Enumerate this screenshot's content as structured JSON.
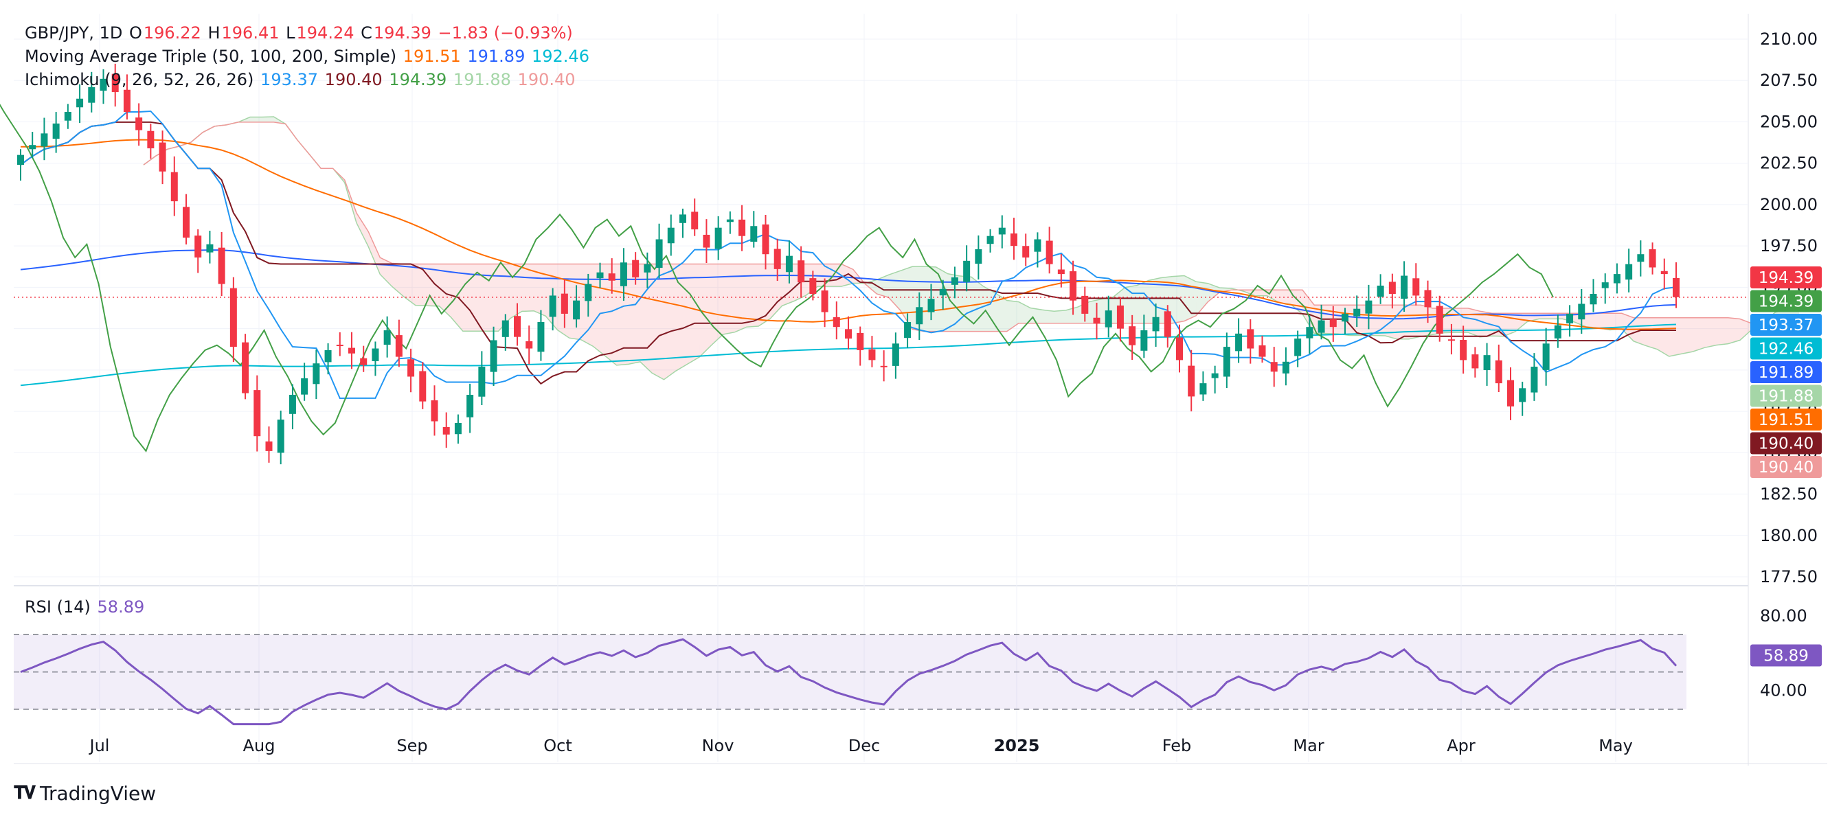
{
  "header": {
    "symbol": "GBP/JPY, 1D",
    "open_label": "O",
    "open": "196.22",
    "high_label": "H",
    "high": "196.41",
    "low_label": "L",
    "low": "194.24",
    "close_label": "C",
    "close": "194.39",
    "change": "−1.83 (−0.93%)"
  },
  "indicators": {
    "ma": {
      "label": "Moving Average Triple (50, 100, 200, Simple)",
      "v50": "191.51",
      "v100": "191.89",
      "v200": "192.46"
    },
    "ichimoku": {
      "label": "Ichimoku (9, 26, 52, 26, 26)",
      "conv": "193.37",
      "base": "190.40",
      "lag": "194.39",
      "spanA": "191.88",
      "spanB": "190.40"
    },
    "rsi": {
      "label": "RSI (14)",
      "value": "58.89"
    }
  },
  "colors": {
    "up": "#089981",
    "down": "#f23645",
    "ma50": "#ff6d00",
    "ma100": "#2962ff",
    "ma200": "#00bcd4",
    "conversion": "#2196f3",
    "base": "#801922",
    "lagging": "#43a047",
    "spanA": "#a5d6a7",
    "spanB": "#ef9a9a",
    "rsi": "#7e57c2"
  },
  "brand": {
    "name": "TradingView"
  },
  "chart_data": {
    "type": "candlestick",
    "price_axis": {
      "ylim": [
        177.5,
        210.0
      ],
      "ticks": [
        "210.00",
        "207.50",
        "205.00",
        "202.50",
        "200.00",
        "197.50",
        "195.00",
        "192.50",
        "190.00",
        "187.50",
        "185.00",
        "182.50",
        "180.00",
        "177.50"
      ]
    },
    "rsi_axis": {
      "ylim": [
        20,
        90
      ],
      "ticks": [
        "80.00",
        "40.00"
      ],
      "bands": [
        30,
        50,
        70
      ]
    },
    "time_axis": [
      "Jul",
      "Aug",
      "Sep",
      "Oct",
      "Nov",
      "Dec",
      "2025",
      "Feb",
      "Mar",
      "Apr",
      "May"
    ],
    "price_tags": [
      {
        "text": "194.39",
        "color": "#f23645"
      },
      {
        "text": "194.39",
        "color": "#43a047"
      },
      {
        "text": "193.37",
        "color": "#2196f3"
      },
      {
        "text": "192.46",
        "color": "#00bcd4"
      },
      {
        "text": "191.89",
        "color": "#2962ff"
      },
      {
        "text": "191.88",
        "color": "#a5d6a7"
      },
      {
        "text": "191.51",
        "color": "#ff6d00"
      },
      {
        "text": "190.40",
        "color": "#801922"
      },
      {
        "text": "190.40",
        "color": "#ef9a9a"
      }
    ],
    "rsi_tag": {
      "text": "58.89",
      "color": "#7e57c2"
    },
    "closes": [
      203.0,
      203.6,
      204.3,
      204.9,
      205.6,
      206.4,
      207.1,
      207.6,
      206.8,
      205.6,
      204.5,
      203.4,
      202.0,
      200.2,
      198.0,
      196.8,
      197.6,
      195.2,
      191.4,
      188.6,
      186.0,
      185.1,
      187.0,
      188.5,
      189.5,
      190.4,
      191.2,
      191.5,
      191.0,
      190.3,
      191.3,
      192.4,
      190.8,
      189.6,
      188.1,
      186.9,
      186.1,
      186.8,
      188.5,
      190.2,
      191.8,
      193.0,
      192.0,
      191.3,
      192.9,
      194.5,
      193.4,
      194.2,
      195.2,
      195.9,
      195.4,
      196.5,
      195.6,
      196.4,
      197.9,
      198.6,
      199.4,
      198.5,
      197.4,
      198.6,
      199.1,
      198.1,
      198.7,
      197.0,
      196.1,
      196.9,
      195.3,
      194.6,
      193.5,
      192.6,
      191.9,
      191.2,
      190.6,
      190.2,
      191.6,
      192.9,
      193.8,
      194.3,
      194.9,
      195.6,
      196.6,
      197.3,
      198.1,
      198.6,
      197.5,
      196.8,
      197.9,
      196.4,
      195.8,
      194.2,
      193.4,
      192.8,
      193.6,
      192.5,
      191.5,
      192.4,
      193.2,
      192.0,
      190.6,
      188.4,
      189.2,
      189.8,
      191.4,
      192.2,
      191.3,
      190.8,
      189.9,
      190.5,
      191.9,
      192.6,
      193.0,
      192.6,
      193.4,
      193.7,
      194.2,
      195.1,
      194.6,
      195.7,
      194.5,
      193.8,
      192.2,
      191.8,
      190.6,
      190.1,
      190.9,
      189.2,
      187.8,
      188.9,
      190.2,
      191.6,
      192.7,
      193.4,
      194.0,
      194.6,
      195.3,
      195.8,
      196.4,
      197.0,
      196.2,
      195.8,
      194.4
    ]
  }
}
